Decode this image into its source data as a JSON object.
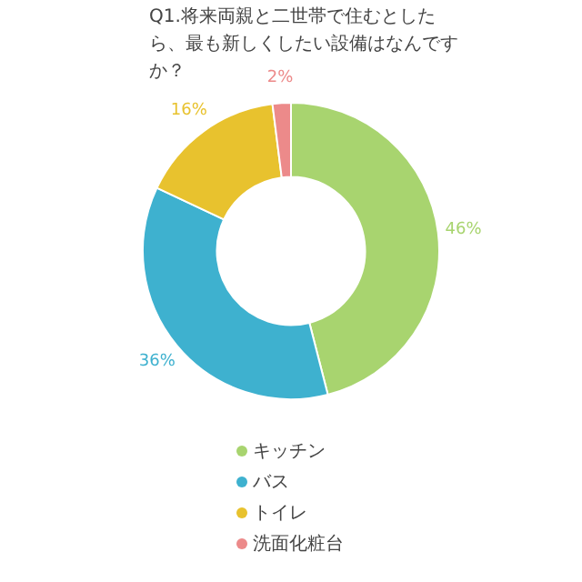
{
  "chart_data": {
    "type": "donut",
    "title": "Q1.将来両親と二世帯で住むとしたら、最も新しくしたい設備はなんですか？",
    "categories": [
      "キッチン",
      "バス",
      "トイレ",
      "洗面化粧台"
    ],
    "values": [
      46,
      36,
      16,
      2
    ],
    "colors": [
      "#a8d46f",
      "#3eb1cf",
      "#e8c22e",
      "#ec8a8a"
    ],
    "value_labels": [
      "46%",
      "36%",
      "16%",
      "2%"
    ],
    "legend": "bottom"
  }
}
